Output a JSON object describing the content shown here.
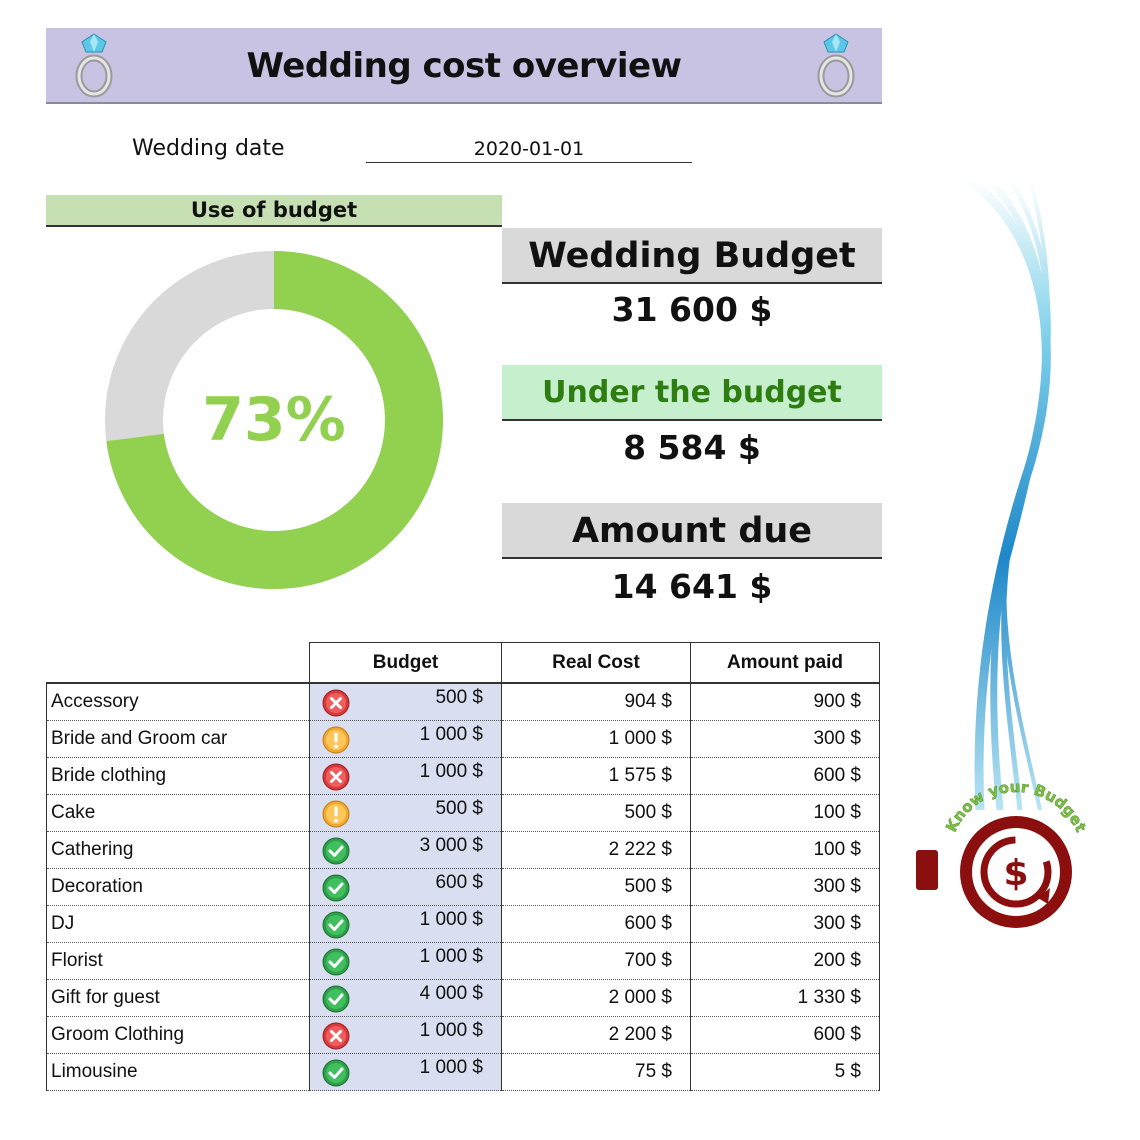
{
  "header": {
    "title": "Wedding cost overview"
  },
  "date": {
    "label": "Wedding date",
    "value": "2020-01-01"
  },
  "usage": {
    "header": "Use of budget",
    "percent_label": "73%",
    "used_fraction": 0.73
  },
  "summary": {
    "budget_label": "Wedding Budget",
    "budget_value": "31 600 $",
    "status_label": "Under the budget",
    "status_value": "8 584 $",
    "due_label": "Amount due",
    "due_value": "14 641 $"
  },
  "table": {
    "columns": [
      "Budget",
      "Real Cost",
      "Amount paid"
    ],
    "rows": [
      {
        "item": "Accessory",
        "status": "error",
        "budget": "500 $",
        "real": "904 $",
        "paid": "900 $"
      },
      {
        "item": "Bride and Groom car",
        "status": "warning",
        "budget": "1 000 $",
        "real": "1 000 $",
        "paid": "300 $"
      },
      {
        "item": "Bride clothing",
        "status": "error",
        "budget": "1 000 $",
        "real": "1 575 $",
        "paid": "600 $"
      },
      {
        "item": "Cake",
        "status": "warning",
        "budget": "500 $",
        "real": "500 $",
        "paid": "100 $"
      },
      {
        "item": "Cathering",
        "status": "ok",
        "budget": "3 000 $",
        "real": "2 222 $",
        "paid": "100 $"
      },
      {
        "item": "Decoration",
        "status": "ok",
        "budget": "600 $",
        "real": "500 $",
        "paid": "300 $"
      },
      {
        "item": "DJ",
        "status": "ok",
        "budget": "1 000 $",
        "real": "600 $",
        "paid": "300 $"
      },
      {
        "item": "Florist",
        "status": "ok",
        "budget": "1 000 $",
        "real": "700 $",
        "paid": "200 $"
      },
      {
        "item": "Gift for guest",
        "status": "ok",
        "budget": "4 000 $",
        "real": "2 000 $",
        "paid": "1 330 $"
      },
      {
        "item": "Groom Clothing",
        "status": "error",
        "budget": "1 000 $",
        "real": "2 200 $",
        "paid": "600 $"
      },
      {
        "item": "Limousine",
        "status": "ok",
        "budget": "1 000 $",
        "real": "75 $",
        "paid": "5 $"
      }
    ]
  },
  "logo": {
    "text": "Know your Budget"
  },
  "colors": {
    "title_bg": "#c8c3e3",
    "green": "#92d050",
    "gray": "#d9d9d9",
    "status_green": "#c6efce",
    "status_text": "#2e7d11",
    "card_gray": "#d9d9d9",
    "logo_red": "#8b0f0f",
    "logo_green": "#7dc242"
  }
}
